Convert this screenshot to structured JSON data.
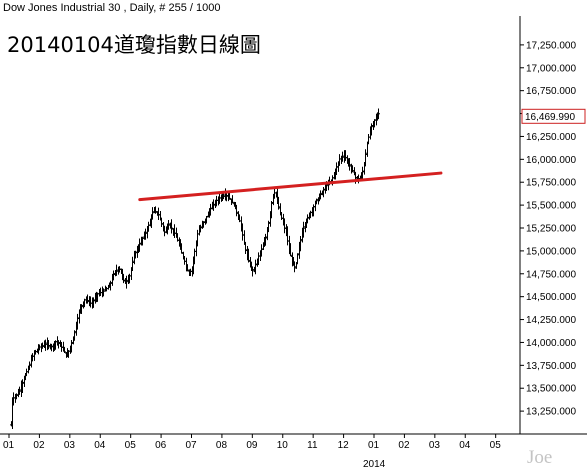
{
  "chart_data": {
    "type": "ohlc",
    "header": "Dow Jones Industrial 30 , Daily, # 255 / 1000",
    "title": "20140104道瓊指數日線圖",
    "watermark": "Joe",
    "last_price_label": "16,469.990",
    "colors": {
      "bars": "#000000",
      "trendline": "#d42020",
      "last_price": "#1a2fd6",
      "last_price_border": "#cc2020"
    },
    "grid": false,
    "ylim": [
      13000,
      17500
    ],
    "y_ticks": [
      {
        "value": 13250,
        "label": "13,250.000"
      },
      {
        "value": 13500,
        "label": "13,500.000"
      },
      {
        "value": 13750,
        "label": "13,750.000"
      },
      {
        "value": 14000,
        "label": "14,000.000"
      },
      {
        "value": 14250,
        "label": "14,250.000"
      },
      {
        "value": 14500,
        "label": "14,500.000"
      },
      {
        "value": 14750,
        "label": "14,750.000"
      },
      {
        "value": 15000,
        "label": "15,000.000"
      },
      {
        "value": 15250,
        "label": "15,250.000"
      },
      {
        "value": 15500,
        "label": "15,500.000"
      },
      {
        "value": 15750,
        "label": "15,750.000"
      },
      {
        "value": 16000,
        "label": "16,000.000"
      },
      {
        "value": 16250,
        "label": "16,250.000"
      },
      {
        "value": 16500,
        "label": "16,500.000"
      },
      {
        "value": 16750,
        "label": "16,750.000"
      },
      {
        "value": 17000,
        "label": "17,000.000"
      },
      {
        "value": 17250,
        "label": "17,250.000"
      }
    ],
    "x_ticks": [
      {
        "month": 0,
        "label": "01"
      },
      {
        "month": 1,
        "label": "02"
      },
      {
        "month": 2,
        "label": "03"
      },
      {
        "month": 3,
        "label": "04"
      },
      {
        "month": 4,
        "label": "05"
      },
      {
        "month": 5,
        "label": "06"
      },
      {
        "month": 6,
        "label": "07"
      },
      {
        "month": 7,
        "label": "08"
      },
      {
        "month": 8,
        "label": "09"
      },
      {
        "month": 9,
        "label": "10"
      },
      {
        "month": 10,
        "label": "11"
      },
      {
        "month": 11,
        "label": "12"
      },
      {
        "month": 12,
        "label": "01"
      },
      {
        "month": 13,
        "label": "02"
      },
      {
        "month": 14,
        "label": "03"
      },
      {
        "month": 15,
        "label": "04"
      },
      {
        "month": 16,
        "label": "05"
      }
    ],
    "xlim": [
      0,
      16.8
    ],
    "year_label": {
      "month": 12,
      "label": "2014"
    },
    "series_path": [
      [
        0.05,
        13100
      ],
      [
        0.1,
        13380
      ],
      [
        0.3,
        13450
      ],
      [
        0.45,
        13580
      ],
      [
        0.6,
        13700
      ],
      [
        0.8,
        13880
      ],
      [
        1.0,
        13950
      ],
      [
        1.2,
        13980
      ],
      [
        1.4,
        13950
      ],
      [
        1.55,
        14020
      ],
      [
        1.75,
        13930
      ],
      [
        1.9,
        13850
      ],
      [
        2.1,
        14050
      ],
      [
        2.3,
        14350
      ],
      [
        2.5,
        14480
      ],
      [
        2.7,
        14420
      ],
      [
        2.9,
        14530
      ],
      [
        3.1,
        14560
      ],
      [
        3.3,
        14620
      ],
      [
        3.45,
        14760
      ],
      [
        3.6,
        14820
      ],
      [
        3.8,
        14650
      ],
      [
        3.95,
        14720
      ],
      [
        4.1,
        14950
      ],
      [
        4.25,
        15050
      ],
      [
        4.45,
        15180
      ],
      [
        4.6,
        15300
      ],
      [
        4.75,
        15450
      ],
      [
        4.9,
        15400
      ],
      [
        5.0,
        15300
      ],
      [
        5.1,
        15200
      ],
      [
        5.25,
        15300
      ],
      [
        5.45,
        15180
      ],
      [
        5.6,
        15050
      ],
      [
        5.75,
        14900
      ],
      [
        5.9,
        14750
      ],
      [
        6.0,
        14800
      ],
      [
        6.1,
        15000
      ],
      [
        6.2,
        15200
      ],
      [
        6.4,
        15320
      ],
      [
        6.6,
        15450
      ],
      [
        6.8,
        15550
      ],
      [
        7.0,
        15600
      ],
      [
        7.1,
        15620
      ],
      [
        7.25,
        15570
      ],
      [
        7.4,
        15500
      ],
      [
        7.6,
        15300
      ],
      [
        7.75,
        15020
      ],
      [
        7.9,
        14850
      ],
      [
        8.0,
        14780
      ],
      [
        8.1,
        14850
      ],
      [
        8.2,
        14950
      ],
      [
        8.4,
        15100
      ],
      [
        8.55,
        15350
      ],
      [
        8.65,
        15600
      ],
      [
        8.75,
        15650
      ],
      [
        8.85,
        15480
      ],
      [
        9.0,
        15300
      ],
      [
        9.1,
        15200
      ],
      [
        9.2,
        15000
      ],
      [
        9.3,
        14880
      ],
      [
        9.4,
        14800
      ],
      [
        9.5,
        15000
      ],
      [
        9.65,
        15250
      ],
      [
        9.8,
        15350
      ],
      [
        9.95,
        15450
      ],
      [
        10.1,
        15550
      ],
      [
        10.25,
        15620
      ],
      [
        10.4,
        15700
      ],
      [
        10.6,
        15780
      ],
      [
        10.75,
        15900
      ],
      [
        10.85,
        16000
      ],
      [
        11.0,
        16050
      ],
      [
        11.15,
        15950
      ],
      [
        11.3,
        15870
      ],
      [
        11.4,
        15780
      ],
      [
        11.55,
        15800
      ],
      [
        11.65,
        15900
      ],
      [
        11.75,
        16150
      ],
      [
        11.85,
        16300
      ],
      [
        11.95,
        16400
      ],
      [
        12.05,
        16450
      ],
      [
        12.15,
        16500
      ]
    ],
    "trendline": [
      [
        4.3,
        15560
      ],
      [
        14.2,
        15850
      ]
    ]
  }
}
